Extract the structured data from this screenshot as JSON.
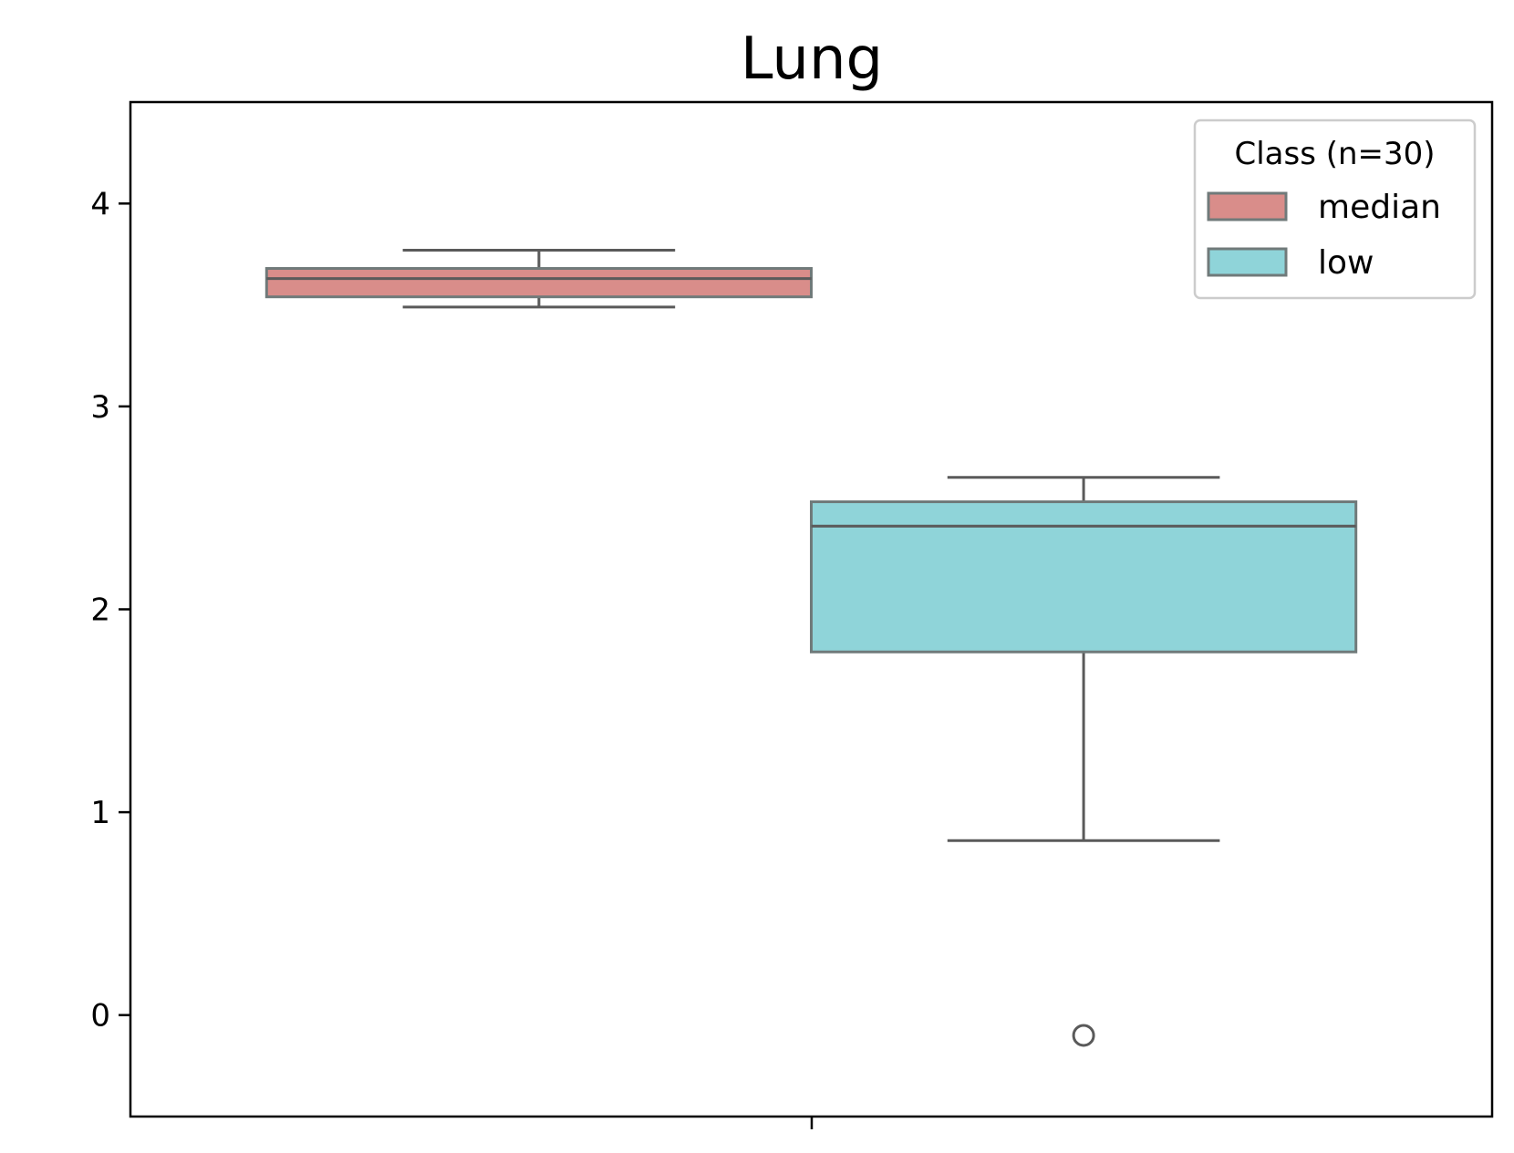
{
  "chart_data": {
    "type": "box",
    "title": "Lung",
    "xlabel": "",
    "ylabel": "",
    "ylim": [
      -0.5,
      4.5
    ],
    "yticks": [
      0,
      1,
      2,
      3,
      4
    ],
    "ytick_labels": [
      "0",
      "1",
      "2",
      "3",
      "4"
    ],
    "grid": false,
    "legend": {
      "title": "Class (n=30)",
      "position": "top-right",
      "entries": [
        "median",
        "low"
      ]
    },
    "series": [
      {
        "name": "median",
        "color": "#d98d8a",
        "whisker_low": 3.49,
        "q1": 3.54,
        "median": 3.63,
        "q3": 3.68,
        "whisker_high": 3.77,
        "outliers": []
      },
      {
        "name": "low",
        "color": "#8fd4d9",
        "whisker_low": 0.86,
        "q1": 1.79,
        "median": 2.41,
        "q3": 2.53,
        "whisker_high": 2.65,
        "outliers": [
          -0.1
        ]
      }
    ]
  }
}
